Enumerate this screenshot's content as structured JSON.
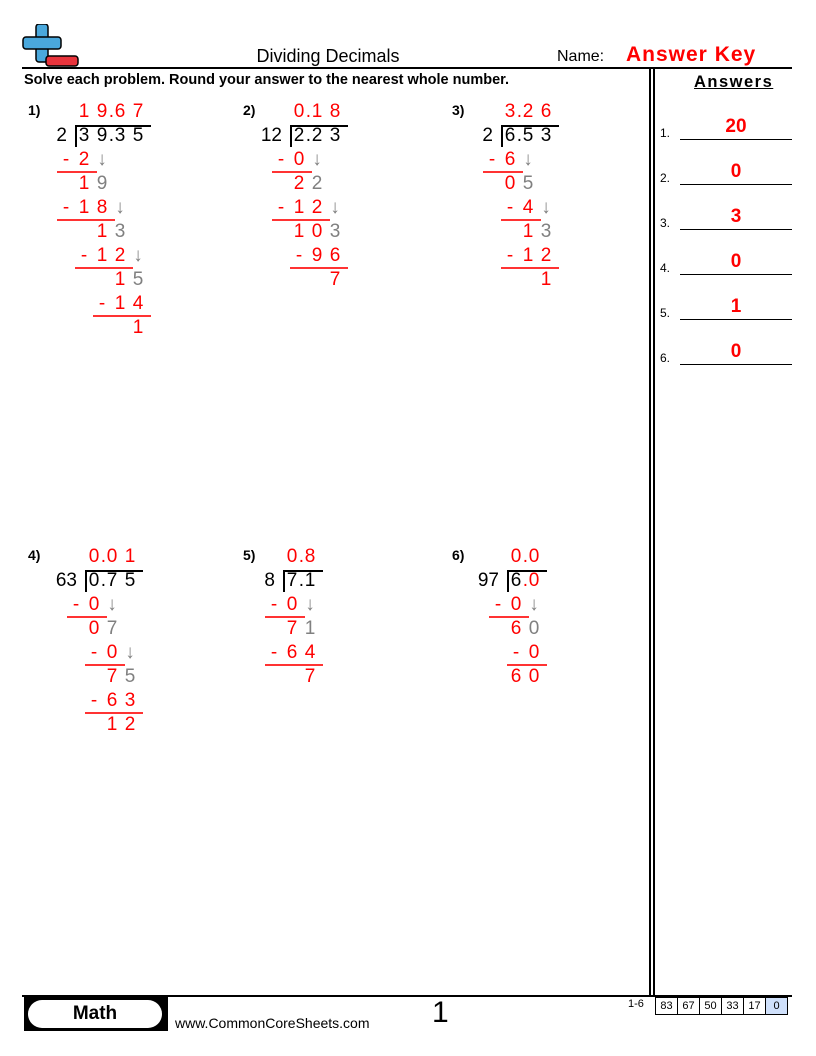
{
  "header": {
    "title": "Dividing Decimals",
    "name_label": "Name:",
    "name_value": "Answer Key",
    "instructions": "Solve each problem. Round your answer to the nearest whole number."
  },
  "answers": {
    "title": "Answers",
    "items": [
      {
        "num": "1.",
        "value": "20"
      },
      {
        "num": "2.",
        "value": "0"
      },
      {
        "num": "3.",
        "value": "3"
      },
      {
        "num": "4.",
        "value": "0"
      },
      {
        "num": "5.",
        "value": "1"
      },
      {
        "num": "6.",
        "value": "0"
      }
    ]
  },
  "colors": {
    "r": "#ff0000",
    "g": "#808080",
    "k": "#000000"
  },
  "problems": [
    {
      "label": "1)",
      "divisor": "2",
      "quotient": [
        [
          " 19.67",
          "r"
        ]
      ],
      "dividend": [
        [
          " 39.35",
          "k"
        ]
      ],
      "rows": [
        {
          "segs": [
            [
              "-2",
              "r"
            ],
            [
              "↓",
              "g"
            ]
          ],
          "underline": true
        },
        {
          "segs": [
            [
              " 1",
              "r"
            ],
            [
              "9",
              "g"
            ]
          ]
        },
        {
          "segs": [
            [
              "-18",
              "r"
            ],
            [
              "↓",
              "g"
            ]
          ],
          "underline": true
        },
        {
          "segs": [
            [
              "  1",
              "r"
            ],
            [
              "3",
              "g"
            ]
          ]
        },
        {
          "segs": [
            [
              " -12",
              "r"
            ],
            [
              "↓",
              "g"
            ]
          ],
          "underline": true
        },
        {
          "segs": [
            [
              "   1",
              "r"
            ],
            [
              "5",
              "g"
            ]
          ]
        },
        {
          "segs": [
            [
              "  -14",
              "r"
            ]
          ],
          "underline": true
        },
        {
          "segs": [
            [
              "    1",
              "r"
            ]
          ]
        }
      ]
    },
    {
      "label": "2)",
      "divisor": "12",
      "quotient": [
        [
          " 0.18",
          "r"
        ]
      ],
      "dividend": [
        [
          " 2.23",
          "k"
        ]
      ],
      "rows": [
        {
          "segs": [
            [
              "-0",
              "r"
            ],
            [
              "↓",
              "g"
            ]
          ],
          "underline": true
        },
        {
          "segs": [
            [
              " 2",
              "r"
            ],
            [
              "2",
              "g"
            ]
          ]
        },
        {
          "segs": [
            [
              "-12",
              "r"
            ],
            [
              "↓",
              "g"
            ]
          ],
          "underline": true
        },
        {
          "segs": [
            [
              " 10",
              "r"
            ],
            [
              "3",
              "g"
            ]
          ]
        },
        {
          "segs": [
            [
              " -96",
              "r"
            ]
          ],
          "underline": true
        },
        {
          "segs": [
            [
              "   7",
              "r"
            ]
          ]
        }
      ]
    },
    {
      "label": "3)",
      "divisor": "2",
      "quotient": [
        [
          " 3.26",
          "r"
        ]
      ],
      "dividend": [
        [
          " 6.53",
          "k"
        ]
      ],
      "rows": [
        {
          "segs": [
            [
              "-6",
              "r"
            ],
            [
              "↓",
              "g"
            ]
          ],
          "underline": true
        },
        {
          "segs": [
            [
              " 0",
              "r"
            ],
            [
              "5",
              "g"
            ]
          ]
        },
        {
          "segs": [
            [
              " -4",
              "r"
            ],
            [
              "↓",
              "g"
            ]
          ],
          "underline": true
        },
        {
          "segs": [
            [
              "  1",
              "r"
            ],
            [
              "3",
              "g"
            ]
          ]
        },
        {
          "segs": [
            [
              " -12",
              "r"
            ]
          ],
          "underline": true
        },
        {
          "segs": [
            [
              "   1",
              "r"
            ]
          ]
        }
      ]
    },
    {
      "label": "4)",
      "divisor": "63",
      "quotient": [
        [
          " 0.01",
          "r"
        ]
      ],
      "dividend": [
        [
          " 0.75",
          "k"
        ]
      ],
      "rows": [
        {
          "segs": [
            [
              "-0",
              "r"
            ],
            [
              "↓",
              "g"
            ]
          ],
          "underline": true
        },
        {
          "segs": [
            [
              " 0",
              "r"
            ],
            [
              "7",
              "g"
            ]
          ]
        },
        {
          "segs": [
            [
              " -0",
              "r"
            ],
            [
              "↓",
              "g"
            ]
          ],
          "underline": true
        },
        {
          "segs": [
            [
              "  7",
              "r"
            ],
            [
              "5",
              "g"
            ]
          ]
        },
        {
          "segs": [
            [
              " -63",
              "r"
            ]
          ],
          "underline": true
        },
        {
          "segs": [
            [
              "  12",
              "r"
            ]
          ]
        }
      ]
    },
    {
      "label": "5)",
      "divisor": "8",
      "quotient": [
        [
          " 0.8",
          "r"
        ]
      ],
      "dividend": [
        [
          " 7.1",
          "k"
        ]
      ],
      "rows": [
        {
          "segs": [
            [
              "-0",
              "r"
            ],
            [
              "↓",
              "g"
            ]
          ],
          "underline": true
        },
        {
          "segs": [
            [
              " 7",
              "r"
            ],
            [
              "1",
              "g"
            ]
          ]
        },
        {
          "segs": [
            [
              "-64",
              "r"
            ]
          ],
          "underline": true
        },
        {
          "segs": [
            [
              "  7",
              "r"
            ]
          ]
        }
      ]
    },
    {
      "label": "6)",
      "divisor": "97",
      "quotient": [
        [
          " 0.0",
          "r"
        ]
      ],
      "dividend": [
        [
          " 6",
          "k"
        ],
        [
          ".0",
          "r"
        ]
      ],
      "rows": [
        {
          "segs": [
            [
              "-0",
              "r"
            ],
            [
              "↓",
              "g"
            ]
          ],
          "underline": true
        },
        {
          "segs": [
            [
              " 6",
              "r"
            ],
            [
              "0",
              "g"
            ]
          ]
        },
        {
          "segs": [
            [
              " -0",
              "r"
            ]
          ],
          "underline": true
        },
        {
          "segs": [
            [
              " 60",
              "r"
            ]
          ]
        }
      ]
    }
  ],
  "footer": {
    "subject": "Math",
    "url": "www.CommonCoreSheets.com",
    "page": "1",
    "range": "1-6",
    "scores": [
      "83",
      "67",
      "50",
      "33",
      "17",
      "0"
    ]
  }
}
